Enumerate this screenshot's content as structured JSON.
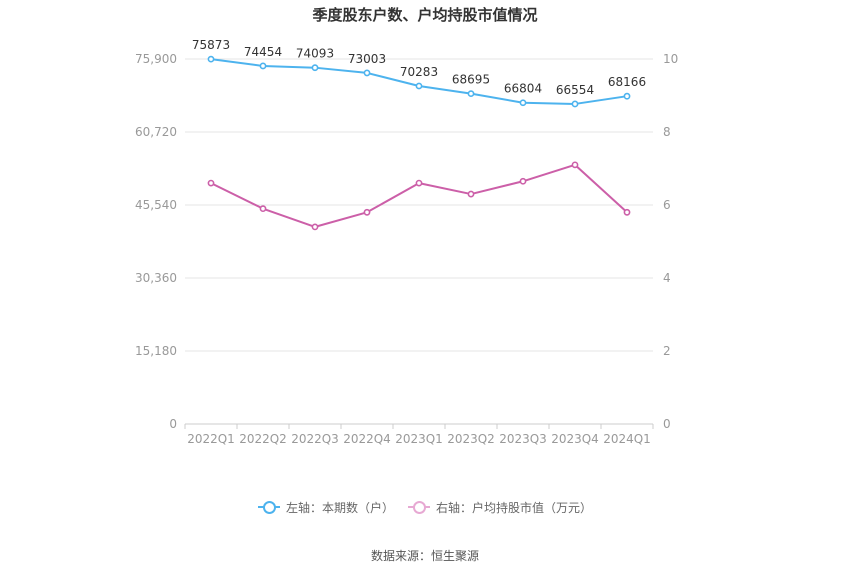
{
  "chart_data": {
    "type": "line",
    "title": "季度股东户数、户均持股市值情况",
    "categories": [
      "2022Q1",
      "2022Q2",
      "2022Q3",
      "2022Q4",
      "2023Q1",
      "2023Q2",
      "2023Q3",
      "2023Q4",
      "2024Q1"
    ],
    "series": [
      {
        "name": "左轴：本期数（户）",
        "axis": "left",
        "color": "#4db3ee",
        "values": [
          75873,
          74454,
          74093,
          73003,
          70283,
          68695,
          66804,
          66554,
          68166
        ],
        "show_labels": true
      },
      {
        "name": "右轴：户均持股市值（万元）",
        "axis": "right",
        "color": "#cc5fa8",
        "values": [
          6.6,
          5.9,
          5.4,
          5.8,
          6.6,
          6.3,
          6.65,
          7.1,
          5.8
        ],
        "show_labels": false
      }
    ],
    "left_axis": {
      "ylim": [
        0,
        75900
      ],
      "ticks": [
        "0",
        "15,180",
        "30,360",
        "45,540",
        "60,720",
        "75,900"
      ]
    },
    "right_axis": {
      "ylim": [
        0,
        10
      ],
      "ticks": [
        "0",
        "2",
        "4",
        "6",
        "8",
        "10"
      ]
    },
    "grid": true,
    "legend_position": "bottom"
  },
  "source": "数据来源：恒生聚源"
}
